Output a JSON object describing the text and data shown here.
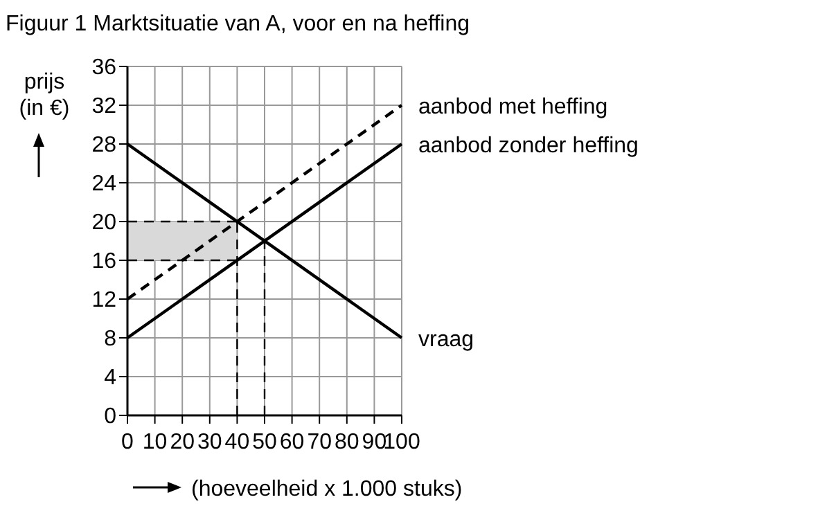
{
  "chart_data": {
    "type": "line",
    "title": "Figuur 1  Marktsituatie van A, voor en na heffing",
    "xlabel": "(hoeveelheid x 1.000 stuks)",
    "ylabel": "prijs\n(in €)",
    "xlim": [
      0,
      100
    ],
    "xticks": [
      0,
      10,
      20,
      30,
      40,
      50,
      60,
      70,
      80,
      90,
      100
    ],
    "ylim": [
      0,
      36
    ],
    "yticks": [
      0,
      4,
      8,
      12,
      16,
      20,
      24,
      28,
      32,
      36
    ],
    "grid": true,
    "legend": false,
    "marker": "none",
    "series": [
      {
        "color": "#000000",
        "line_style": "dashed",
        "x": [
          0,
          40
        ],
        "values": [
          20,
          20
        ],
        "lower": [
          16,
          16
        ],
        "upper": [
          20,
          20
        ]
      },
      {
        "color": "#000000",
        "line_style": "dashed",
        "x": [
          0,
          40
        ],
        "values": [
          16,
          16
        ]
      },
      {
        "name": "aanbod met heffing",
        "color": "#000000",
        "line_style": "dashed",
        "x": [
          0,
          100
        ],
        "values": [
          12,
          32
        ]
      },
      {
        "name": "aanbod zonder heffing",
        "color": "#000000",
        "line_style": "solid",
        "x": [
          0,
          100
        ],
        "values": [
          8,
          28
        ]
      },
      {
        "name": "vraag",
        "color": "#000000",
        "line_style": "solid",
        "x": [
          0,
          100
        ],
        "values": [
          28,
          8
        ]
      },
      {
        "color": "#000000",
        "line_style": "dashed",
        "x": [
          40,
          40
        ],
        "values": [
          0,
          20
        ]
      },
      {
        "color": "#000000",
        "line_style": "dashed",
        "x": [
          50,
          50
        ],
        "values": [
          0,
          18
        ]
      }
    ]
  }
}
